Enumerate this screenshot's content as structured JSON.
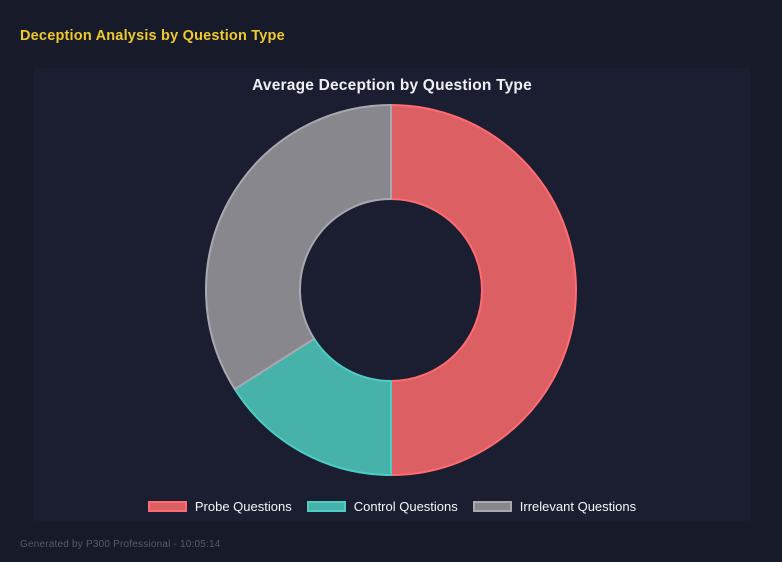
{
  "page": {
    "header_title": "Deception Analysis by Question Type",
    "footer_text": "Generated by P300 Professional - 10:05:14"
  },
  "chart_data": {
    "type": "pie",
    "subtype": "donut",
    "title": "Average Deception by Question Type",
    "categories": [
      "Probe Questions",
      "Control Questions",
      "Irrelevant Questions"
    ],
    "values": [
      50,
      16,
      34
    ],
    "values_unit": "percent_of_total",
    "colors": [
      "#dc5f63",
      "#46b2aa",
      "#87878d"
    ],
    "border_colors": [
      "#ff6b70",
      "#4ecdc4",
      "#a8a8b0"
    ],
    "start_angle_deg": 0,
    "direction": "clockwise",
    "cutout_ratio": 0.49,
    "legend_position": "bottom",
    "grid": false
  },
  "theme": {
    "page_bg": "#171a28",
    "panel_bg": "#1b1e31",
    "header_color": "#f0c92f",
    "title_color": "#eef0f4",
    "legend_text_color": "#f5f6f8",
    "footer_color": "#555b6d"
  }
}
